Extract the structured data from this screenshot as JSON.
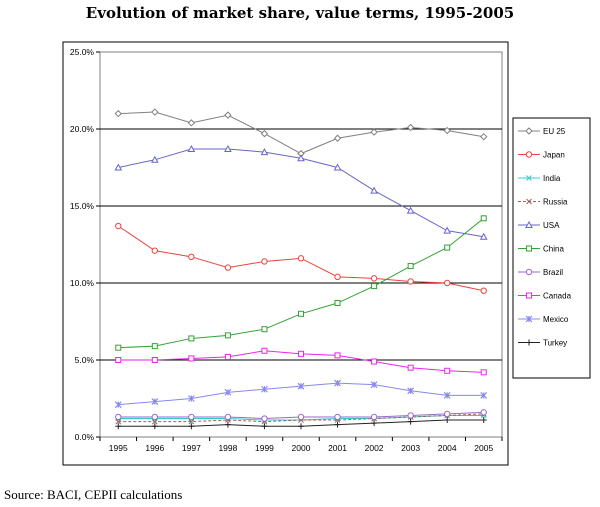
{
  "title": "Evolution of market share, value terms, 1995-2005",
  "source": "Source: BACI, CEPII calculations",
  "chart_data": {
    "type": "line",
    "title": "Evolution of market share, value terms, 1995-2005",
    "xlabel": "",
    "ylabel": "",
    "x": [
      "1995",
      "1996",
      "1997",
      "1998",
      "1999",
      "2000",
      "2001",
      "2002",
      "2003",
      "2004",
      "2005"
    ],
    "y_ticks": [
      "0.0%",
      "5.0%",
      "10.0%",
      "15.0%",
      "20.0%",
      "25.0%"
    ],
    "ylim": [
      0,
      25
    ],
    "grid": "horizontal major lines",
    "legend_position": "right",
    "series": [
      {
        "name": "EU 25",
        "color": "#808080",
        "marker": "diamond",
        "values": [
          21.0,
          21.1,
          20.4,
          20.9,
          19.7,
          18.4,
          19.4,
          19.8,
          20.1,
          19.9,
          19.5
        ]
      },
      {
        "name": "Japan",
        "color": "#e8453c",
        "marker": "circle",
        "values": [
          13.7,
          12.1,
          11.7,
          11.0,
          11.4,
          11.6,
          10.4,
          10.3,
          10.1,
          10.0,
          9.5
        ]
      },
      {
        "name": "India",
        "color": "#33cccc",
        "marker": "x",
        "values": [
          1.2,
          1.2,
          1.2,
          1.2,
          1.1,
          1.1,
          1.2,
          1.2,
          1.3,
          1.4,
          1.4
        ]
      },
      {
        "name": "Russia",
        "color": "#a06060",
        "marker": "x",
        "dashed": true,
        "values": [
          1.0,
          1.0,
          1.0,
          1.1,
          1.0,
          1.1,
          1.1,
          1.2,
          1.3,
          1.4,
          1.5
        ]
      },
      {
        "name": "USA",
        "color": "#6666cc",
        "marker": "triangle",
        "values": [
          17.5,
          18.0,
          18.7,
          18.7,
          18.5,
          18.1,
          17.5,
          16.0,
          14.7,
          13.4,
          13.0
        ]
      },
      {
        "name": "China",
        "color": "#33a333",
        "marker": "square",
        "values": [
          5.8,
          5.9,
          6.4,
          6.6,
          7.0,
          8.0,
          8.7,
          9.8,
          11.1,
          12.3,
          14.2
        ]
      },
      {
        "name": "Brazil",
        "color": "#9966cc",
        "marker": "circle",
        "values": [
          1.3,
          1.3,
          1.3,
          1.3,
          1.2,
          1.3,
          1.3,
          1.3,
          1.4,
          1.5,
          1.6
        ]
      },
      {
        "name": "Canada",
        "color": "#ee22ee",
        "marker": "square",
        "values": [
          5.0,
          5.0,
          5.1,
          5.2,
          5.6,
          5.4,
          5.3,
          4.9,
          4.5,
          4.3,
          4.2
        ]
      },
      {
        "name": "Mexico",
        "color": "#8888ee",
        "marker": "asterisk",
        "values": [
          2.1,
          2.3,
          2.5,
          2.9,
          3.1,
          3.3,
          3.5,
          3.4,
          3.0,
          2.7,
          2.7
        ]
      },
      {
        "name": "Turkey",
        "color": "#222222",
        "marker": "plus",
        "values": [
          0.7,
          0.7,
          0.7,
          0.8,
          0.7,
          0.7,
          0.8,
          0.9,
          1.0,
          1.1,
          1.1
        ]
      }
    ]
  }
}
